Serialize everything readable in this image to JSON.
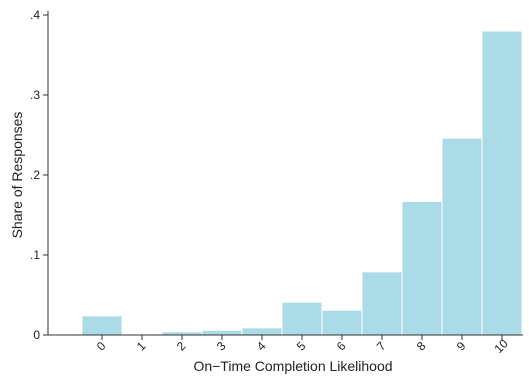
{
  "chart_data": {
    "type": "bar",
    "categories": [
      "0",
      "1",
      "2",
      "3",
      "4",
      "5",
      "6",
      "7",
      "8",
      "9",
      "10"
    ],
    "values": [
      0.024,
      0.0,
      0.004,
      0.006,
      0.009,
      0.041,
      0.031,
      0.079,
      0.167,
      0.246,
      0.38
    ],
    "title": "",
    "xlabel": "On−Time Completion Likelihood",
    "ylabel": "Share of Responses",
    "ylim": [
      0,
      0.4
    ],
    "yticks": [
      {
        "value": 0,
        "label": "0"
      },
      {
        "value": 0.1,
        "label": ".1"
      },
      {
        "value": 0.2,
        "label": ".2"
      },
      {
        "value": 0.3,
        "label": ".3"
      },
      {
        "value": 0.4,
        "label": ".4"
      }
    ],
    "bar_color": "#aadbe6",
    "grid": false,
    "legend": "none"
  }
}
